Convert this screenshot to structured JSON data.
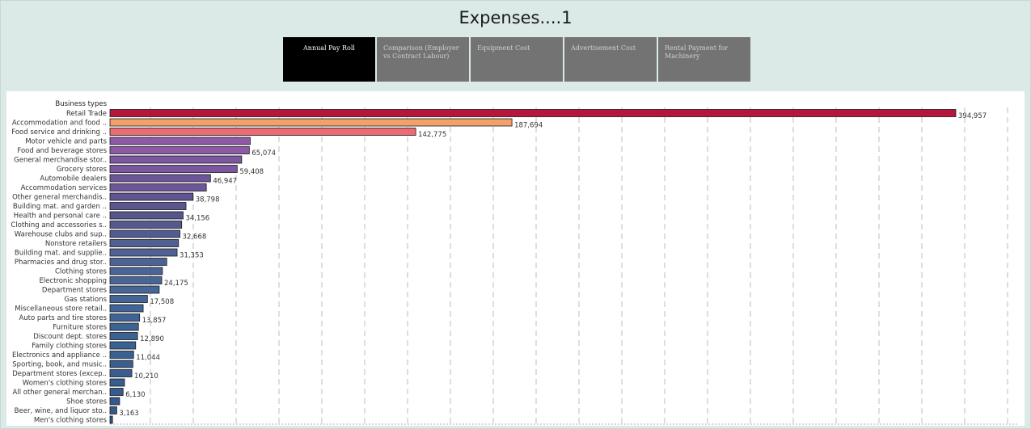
{
  "page": {
    "title": "Expenses....1"
  },
  "tabs": [
    {
      "label": "Annual Pay Roll",
      "active": true
    },
    {
      "label": "Comparison (Employer vs Contract Labour)",
      "active": false
    },
    {
      "label": "Equipment Cost",
      "active": false
    },
    {
      "label": "Advertisement Cost",
      "active": false
    },
    {
      "label": "Rental Payment for Machinery",
      "active": false
    }
  ],
  "chart_data": {
    "type": "bar",
    "orientation": "horizontal",
    "ylabel": "Business types",
    "grid": true,
    "xlim": [
      0,
      420000
    ],
    "categories": [
      "Retail Trade",
      "Accommodation and food ..",
      "Food service and drinking ..",
      "Motor vehicle and parts",
      "Food and beverage stores",
      "General merchandise stor..",
      "Grocery stores",
      "Automobile dealers",
      "Accommodation services",
      "Other general merchandis..",
      "Building mat. and garden ..",
      "Health and personal care ..",
      "Clothing and accessories s..",
      "Warehouse clubs and sup..",
      "Nonstore retailers",
      "Building mat. and supplie..",
      "Pharmacies and drug stor..",
      "Clothing stores",
      "Electronic shopping",
      "Department stores",
      "Gas stations",
      "Miscellaneous store retail..",
      "Auto parts and tire stores",
      "Furniture stores",
      "Discount dept. stores",
      "Family clothing stores",
      "Electronics and appliance ..",
      "Sporting, book, and music..",
      "Department stores (excep..",
      "Women's clothing stores",
      "All other general merchan..",
      "Shoe stores",
      "Beer, wine, and liquor sto..",
      "Men's clothing stores"
    ],
    "values": [
      394957,
      187694,
      142775,
      65500,
      65074,
      61500,
      59408,
      46947,
      45000,
      38798,
      35500,
      34156,
      33500,
      32668,
      32000,
      31353,
      26500,
      24500,
      24175,
      23000,
      17508,
      15500,
      13857,
      13300,
      12890,
      12000,
      11044,
      10700,
      10210,
      6800,
      6130,
      4500,
      3163,
      1200
    ],
    "data_labels": [
      "394,957",
      "187,694",
      "142,775",
      "",
      "65,074",
      "",
      "59,408",
      "46,947",
      "",
      "38,798",
      "",
      "34,156",
      "",
      "32,668",
      "",
      "31,353",
      "",
      "",
      "24,175",
      "",
      "17,508",
      "",
      "13,857",
      "",
      "12,890",
      "",
      "11,044",
      "",
      "10,210",
      "",
      "6,130",
      "",
      "3,163",
      ""
    ],
    "colors": [
      "#b7163c",
      "#f3a16b",
      "#ea6b72",
      "#8e5aa6",
      "#8e5aa6",
      "#7c579f",
      "#7c579f",
      "#6d5599",
      "#6d5599",
      "#605493",
      "#5b5590",
      "#56568e",
      "#54598e",
      "#535c90",
      "#525f92",
      "#506194",
      "#4d6395",
      "#4a6496",
      "#476597",
      "#456697",
      "#436697",
      "#416596",
      "#3f6395",
      "#3d6294",
      "#3c6193",
      "#3b6092",
      "#3a5f91",
      "#395e90",
      "#385d8f",
      "#375c8e",
      "#365b8d",
      "#355a8c",
      "#34598b",
      "#33588a"
    ]
  }
}
